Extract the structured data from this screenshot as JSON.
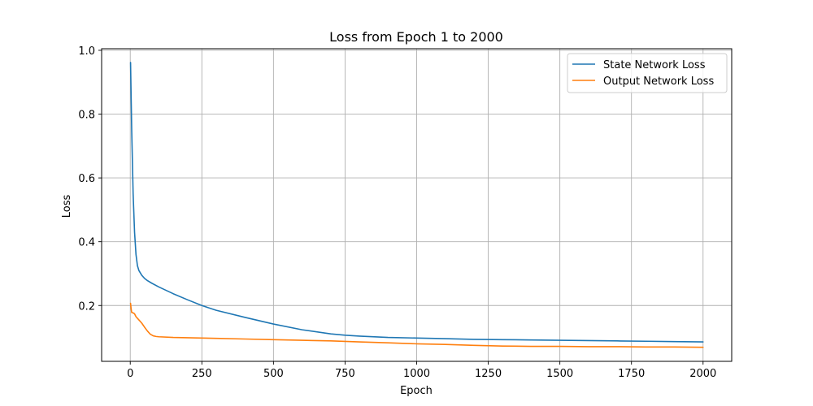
{
  "chart_data": {
    "type": "line",
    "title": "Loss from Epoch 1 to 2000",
    "xlabel": "Epoch",
    "ylabel": "Loss",
    "xlim": [
      -100,
      2100
    ],
    "ylim": [
      0.025,
      1.005
    ],
    "xticks": [
      0,
      250,
      500,
      750,
      1000,
      1250,
      1500,
      1750,
      2000
    ],
    "xtick_labels": [
      "0",
      "250",
      "500",
      "750",
      "1000",
      "1250",
      "1500",
      "1750",
      "2000"
    ],
    "yticks": [
      0.2,
      0.4,
      0.6,
      0.8,
      1.0
    ],
    "ytick_labels": [
      "0.2",
      "0.4",
      "0.6",
      "0.8",
      "1.0"
    ],
    "grid": true,
    "legend_position": "upper right",
    "series": [
      {
        "name": "State Network Loss",
        "color": "#1f77b4",
        "x": [
          1,
          5,
          10,
          15,
          20,
          25,
          30,
          40,
          50,
          60,
          75,
          100,
          150,
          200,
          250,
          300,
          400,
          500,
          600,
          700,
          750,
          800,
          900,
          1000,
          1100,
          1200,
          1300,
          1400,
          1500,
          1600,
          1700,
          1800,
          1900,
          2000
        ],
        "y": [
          0.962,
          0.75,
          0.55,
          0.43,
          0.36,
          0.325,
          0.31,
          0.295,
          0.285,
          0.278,
          0.27,
          0.258,
          0.237,
          0.218,
          0.2,
          0.185,
          0.163,
          0.142,
          0.124,
          0.111,
          0.107,
          0.104,
          0.1,
          0.098,
          0.096,
          0.094,
          0.093,
          0.092,
          0.091,
          0.09,
          0.089,
          0.088,
          0.087,
          0.086
        ]
      },
      {
        "name": "Output Network Loss",
        "color": "#ff7f0e",
        "x": [
          1,
          3,
          5,
          10,
          15,
          20,
          30,
          40,
          50,
          60,
          70,
          80,
          90,
          100,
          150,
          200,
          250,
          300,
          400,
          500,
          600,
          700,
          800,
          900,
          1000,
          1100,
          1200,
          1300,
          1400,
          1500,
          1600,
          1700,
          1800,
          1900,
          2000
        ],
        "y": [
          0.207,
          0.19,
          0.178,
          0.177,
          0.174,
          0.165,
          0.155,
          0.145,
          0.132,
          0.12,
          0.11,
          0.105,
          0.103,
          0.102,
          0.1,
          0.099,
          0.098,
          0.097,
          0.095,
          0.093,
          0.091,
          0.089,
          0.086,
          0.083,
          0.08,
          0.078,
          0.075,
          0.073,
          0.072,
          0.072,
          0.071,
          0.071,
          0.07,
          0.07,
          0.069
        ]
      }
    ]
  }
}
